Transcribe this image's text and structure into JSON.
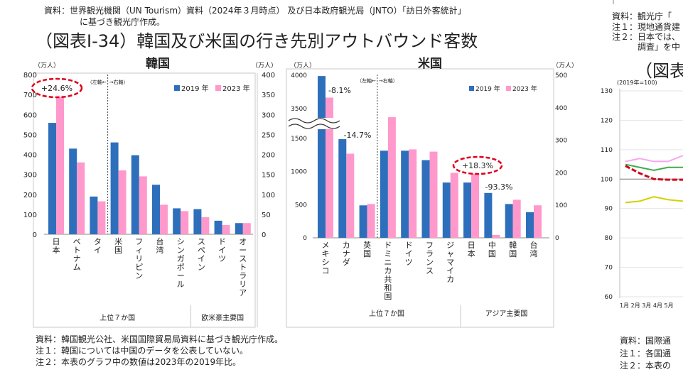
{
  "top_source": {
    "line1": "資料：世界観光機関（UN Tourism）資料（2024年３月時点） 及び日本政府観光局（JNTO）「訪日外客統計」",
    "line2": "に基づき観光庁作成。"
  },
  "page_title": "（図表Ⅰ-34）韓国及び米国の行き先別アウトバウンド客数",
  "colors": {
    "y2019": "#2e6fbc",
    "y2023": "#ff99cc",
    "badge": "#e0001b"
  },
  "korea_chart": {
    "title": "韓国",
    "left_unit": "（万人）",
    "right_unit": "（万人）",
    "axis_note_left": "（左軸←",
    "axis_note_right": "→右軸）",
    "legend": [
      "2019 年",
      "2023 年"
    ],
    "group_labels": [
      "上位７か国",
      "欧米豪主要国"
    ],
    "badge": "+24.6%"
  },
  "us_chart": {
    "title": "米国",
    "left_unit": "（万人）",
    "right_unit": "（万人）",
    "axis_note_left": "（左軸←",
    "axis_note_right": "→右軸）",
    "legend": [
      "2019 年",
      "2023 年"
    ],
    "group_labels": [
      "上位７か国",
      "アジア主要国"
    ],
    "badge": "+18.3%",
    "annotations": [
      "-8.1%",
      "-14.7%",
      "-93.3%"
    ]
  },
  "bottom_notes": [
    "資料：韓国観光公社、米国国際貿易局資料に基づき観光庁作成。",
    "注１：韓国については中国のデータを公表していない。",
    "注２：本表のグラフ中の数値は2023年の2019年比。"
  ],
  "right_panel": {
    "notes": [
      "資料：観光庁「",
      "注１：現地通貨建",
      "注２：日本では、",
      "調査」を中"
    ],
    "title": "（図表",
    "base_label": "(2019年=100)",
    "bottom_notes": [
      "資料：国際通",
      "注１：各国通",
      "注２：本表の"
    ],
    "month_labels": "1月 2月 3月 4月 5月"
  },
  "chart_data": [
    {
      "type": "bar",
      "title": "韓国",
      "ylabel_left": "（万人）",
      "ylabel_right": "（万人）",
      "left_ylim": [
        0,
        800
      ],
      "left_ticks": [
        0,
        100,
        200,
        300,
        400,
        500,
        600,
        700,
        800
      ],
      "right_ylim": [
        0,
        400
      ],
      "right_ticks": [
        0,
        50,
        100,
        150,
        200,
        250,
        300,
        350,
        400
      ],
      "legend_position": "top-right",
      "grid": false,
      "categories": [
        "日本",
        "ベトナム",
        "タイ",
        "米国",
        "フィリピン",
        "台湾",
        "シンガポール",
        "スペイン",
        "ドイツ",
        "オーストラリア"
      ],
      "axis_for_category": [
        "left",
        "left",
        "left",
        "right",
        "right",
        "right",
        "right",
        "right",
        "right",
        "right"
      ],
      "series": [
        {
          "name": "2019 年",
          "values": [
            558,
            429,
            189,
            230,
            198,
            124,
            65,
            63,
            34,
            28
          ]
        },
        {
          "name": "2023 年",
          "values": [
            696,
            360,
            165,
            160,
            145,
            74,
            58,
            43,
            23,
            28
          ]
        }
      ],
      "annotations": [
        "+24.6%"
      ]
    },
    {
      "type": "bar",
      "title": "米国",
      "ylabel_left": "（万人）",
      "ylabel_right": "（万人）",
      "left_ylim": [
        0,
        4000
      ],
      "left_ticks": [
        0,
        500,
        1000,
        1500,
        3500,
        4000
      ],
      "left_axis_break": [
        1500,
        3500
      ],
      "right_ylim": [
        0,
        500
      ],
      "right_ticks": [
        0,
        100,
        200,
        300,
        400,
        500
      ],
      "legend_position": "top-right",
      "grid": false,
      "categories": [
        "メキシコ",
        "カナダ",
        "英国",
        "ドミニカ共和国",
        "ドイツ",
        "フランス",
        "ジャマイカ",
        "日本",
        "中国",
        "韓国",
        "台湾"
      ],
      "axis_for_category": [
        "left",
        "left",
        "left",
        "right",
        "right",
        "right",
        "right",
        "right",
        "right",
        "right",
        "right"
      ],
      "series": [
        {
          "name": "2019 年",
          "values": [
            3988,
            1489,
            490,
            268,
            268,
            239,
            170,
            170,
            138,
            104,
            79
          ]
        },
        {
          "name": "2023 年",
          "values": [
            3665,
            1270,
            511,
            371,
            272,
            265,
            200,
            200,
            9,
            117,
            100
          ]
        }
      ],
      "annotations": [
        "-8.1%",
        "-14.7%",
        "+18.3%",
        "-93.3%"
      ]
    }
  ]
}
